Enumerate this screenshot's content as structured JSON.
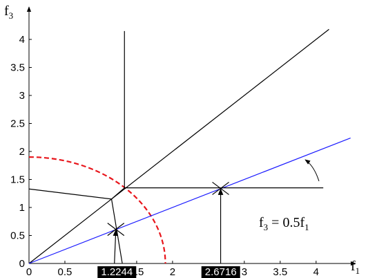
{
  "chart_data": {
    "type": "line",
    "xlabel": [
      "f",
      "1"
    ],
    "ylabel": [
      "f",
      "3"
    ],
    "annotation": [
      "f",
      "3",
      " = 0.5f",
      "1"
    ],
    "xlim": [
      0,
      4.55
    ],
    "ylim": [
      0,
      4.58
    ],
    "xticks": [
      0,
      0.5,
      1.5,
      2,
      3,
      3.5,
      4
    ],
    "yticks": [
      0,
      0.5,
      1,
      1.5,
      2,
      2.5,
      3,
      3.5,
      4
    ],
    "highlight_ticks": [
      1.2244,
      2.6716
    ],
    "circle": {
      "r": 1.9,
      "color": "#e8151b"
    },
    "series": [
      {
        "color": "#000000",
        "x": [
          0,
          4.18
        ],
        "y": [
          0,
          4.18
        ]
      },
      {
        "color": "#1a1aff",
        "x": [
          0,
          4.48
        ],
        "y": [
          0,
          2.24
        ]
      },
      {
        "color": "#000000",
        "x": [
          0,
          1.15,
          1.33,
          1.33,
          null,
          1.33,
          4.1,
          null,
          1.15,
          1.3
        ],
        "y": [
          1.33,
          1.15,
          1.35,
          4.15,
          null,
          1.35,
          1.35,
          null,
          1.15,
          0
        ]
      },
      {
        "color": "#000000",
        "arrow": true,
        "x": [
          1.19,
          1.21
        ],
        "y": [
          0,
          0.6
        ]
      },
      {
        "color": "#000000",
        "arrow": true,
        "x": [
          2.67,
          2.67
        ],
        "y": [
          0,
          1.33
        ]
      }
    ],
    "stars": {
      "x": [
        1.21,
        2.67
      ],
      "y": [
        0.61,
        1.34
      ]
    }
  }
}
